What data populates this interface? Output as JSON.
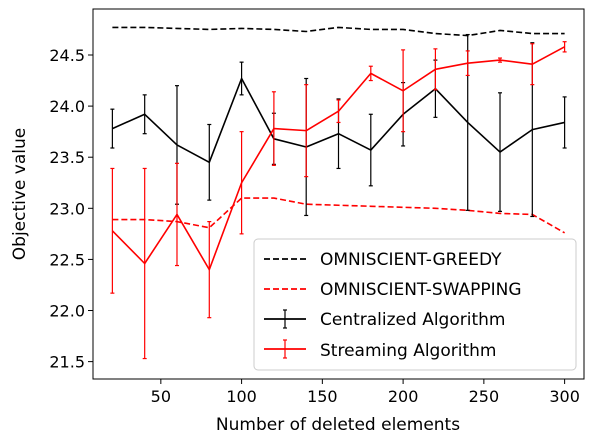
{
  "chart_data": {
    "type": "line",
    "xlabel": "Number of deleted elements",
    "ylabel": "Objective value",
    "xlim": [
      8,
      312
    ],
    "ylim": [
      21.33,
      24.95
    ],
    "xticks": [
      50,
      100,
      150,
      200,
      250,
      300
    ],
    "yticks": [
      21.5,
      22.0,
      22.5,
      23.0,
      23.5,
      24.0,
      24.5
    ],
    "grid": false,
    "legend_position": "lower-right",
    "x": [
      20,
      40,
      60,
      80,
      100,
      120,
      140,
      160,
      180,
      200,
      220,
      240,
      260,
      280,
      300
    ],
    "series": [
      {
        "name": "OMNISCIENT-GREEDY",
        "color": "#000000",
        "style": "dashed",
        "values": [
          24.77,
          24.77,
          24.76,
          24.75,
          24.76,
          24.75,
          24.73,
          24.77,
          24.75,
          24.75,
          24.71,
          24.69,
          24.74,
          24.71,
          24.71
        ]
      },
      {
        "name": "OMNISCIENT-SWAPPING",
        "color": "#ff0000",
        "style": "dashed",
        "values": [
          22.89,
          22.89,
          22.87,
          22.81,
          23.1,
          23.1,
          23.04,
          23.03,
          23.02,
          23.01,
          23.0,
          22.98,
          22.95,
          22.94,
          22.76
        ]
      },
      {
        "name": "Centralized Algorithm",
        "color": "#000000",
        "style": "solid",
        "values": [
          23.78,
          23.92,
          23.62,
          23.45,
          24.27,
          23.68,
          23.6,
          23.73,
          23.57,
          23.92,
          24.17,
          23.84,
          23.55,
          23.77,
          23.84
        ],
        "errors": [
          0.19,
          0.19,
          0.58,
          0.37,
          0.16,
          0.25,
          0.67,
          0.34,
          0.35,
          0.31,
          0.28,
          0.86,
          0.58,
          0.85,
          0.25
        ]
      },
      {
        "name": "Streaming Algorithm",
        "color": "#ff0000",
        "style": "solid",
        "values": [
          22.78,
          22.46,
          22.94,
          22.4,
          23.25,
          23.78,
          23.76,
          23.95,
          24.32,
          24.15,
          24.36,
          24.42,
          24.45,
          24.41,
          24.58
        ],
        "errors": [
          0.61,
          0.93,
          0.5,
          0.47,
          0.5,
          0.36,
          0.45,
          0.11,
          0.07,
          0.4,
          0.2,
          0.12,
          0.02,
          0.2,
          0.05
        ]
      }
    ]
  }
}
